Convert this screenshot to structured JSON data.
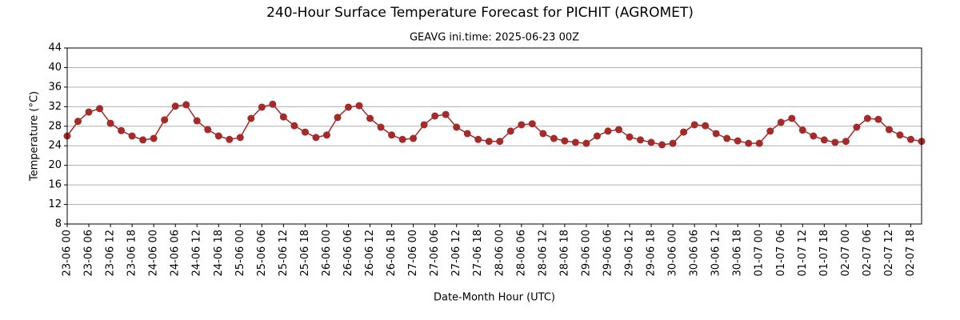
{
  "chart_data": {
    "type": "line",
    "title": "240-Hour Surface Temperature Forecast for PICHIT (AGROMET)",
    "subtitle": "GEAVG ini.time: 2025-06-23 00Z",
    "x_label": "Date-Month Hour (UTC)",
    "y_label": "Temperature (°C)",
    "categories": [
      "23-06 00",
      null,
      "23-06 06",
      null,
      "23-06 12",
      null,
      "23-06 18",
      null,
      "24-06 00",
      null,
      "24-06 06",
      null,
      "24-06 12",
      null,
      "24-06 18",
      null,
      "25-06 00",
      null,
      "25-06 06",
      null,
      "25-06 12",
      null,
      "25-06 18",
      null,
      "26-06 00",
      null,
      "26-06 06",
      null,
      "26-06 12",
      null,
      "26-06 18",
      null,
      "27-06 00",
      null,
      "27-06 06",
      null,
      "27-06 12",
      null,
      "27-06 18",
      null,
      "28-06 00",
      null,
      "28-06 06",
      null,
      "28-06 12",
      null,
      "28-06 18",
      null,
      "29-06 00",
      null,
      "29-06 06",
      null,
      "29-06 12",
      null,
      "29-06 18",
      null,
      "30-06 00",
      null,
      "30-06 06",
      null,
      "30-06 12",
      null,
      "30-06 18",
      null,
      "01-07 00",
      null,
      "01-07 06",
      null,
      "01-07 12",
      null,
      "01-07 18",
      null,
      "02-07 00",
      null,
      "02-07 06",
      null,
      "02-07 12",
      null,
      "02-07 18",
      null
    ],
    "series": [
      {
        "name": "Temperature",
        "color": "#a52a2a",
        "values": [
          26.0,
          29.0,
          30.9,
          31.6,
          28.6,
          27.1,
          26.0,
          25.2,
          25.5,
          29.3,
          32.1,
          32.4,
          29.1,
          27.3,
          26.0,
          25.3,
          25.7,
          29.6,
          31.9,
          32.5,
          29.9,
          28.1,
          26.8,
          25.7,
          26.2,
          29.8,
          31.9,
          32.2,
          29.6,
          27.8,
          26.2,
          25.3,
          25.5,
          28.3,
          30.1,
          30.4,
          27.8,
          26.5,
          25.3,
          24.9,
          24.9,
          27.0,
          28.3,
          28.5,
          26.5,
          25.5,
          25.0,
          24.7,
          24.5,
          26.0,
          27.0,
          27.3,
          25.8,
          25.2,
          24.7,
          24.2,
          24.5,
          26.8,
          28.3,
          28.1,
          26.5,
          25.5,
          25.0,
          24.5,
          24.5,
          27.0,
          28.8,
          29.6,
          27.2,
          26.0,
          25.2,
          24.7,
          24.9,
          27.8,
          29.6,
          29.4,
          27.3,
          26.2,
          25.3,
          24.9
        ]
      }
    ],
    "ylim": [
      8,
      44
    ],
    "yticks": [
      8,
      12,
      16,
      20,
      24,
      28,
      32,
      36,
      40,
      44
    ],
    "grid": true
  }
}
